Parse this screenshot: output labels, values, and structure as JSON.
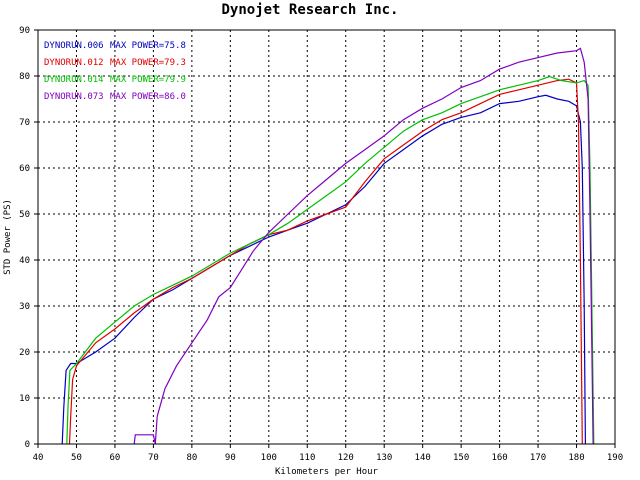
{
  "chart_data": {
    "type": "line",
    "title": "Dynojet  Research  Inc.",
    "xlabel": "Kilometers per Hour",
    "ylabel": "STD Power (PS)",
    "xlim": [
      40,
      190
    ],
    "ylim": [
      0,
      90
    ],
    "xticks": [
      40,
      50,
      60,
      70,
      80,
      90,
      100,
      110,
      120,
      130,
      140,
      150,
      160,
      170,
      180,
      190
    ],
    "yticks": [
      0,
      10,
      20,
      30,
      40,
      50,
      60,
      70,
      80,
      90
    ],
    "grid": true,
    "legend_position": "top-left",
    "series": [
      {
        "name": "DYNORUN.006",
        "label": "MAX POWER=75.8",
        "color": "#0000c0",
        "points": [
          [
            46.3,
            0
          ],
          [
            46.7,
            8
          ],
          [
            47.3,
            16
          ],
          [
            48.5,
            17.5
          ],
          [
            50,
            17.5
          ],
          [
            55,
            20
          ],
          [
            60,
            23
          ],
          [
            65,
            27.5
          ],
          [
            70,
            31.5
          ],
          [
            75,
            33.5
          ],
          [
            80,
            36
          ],
          [
            85,
            38.5
          ],
          [
            90,
            41
          ],
          [
            95,
            43
          ],
          [
            100,
            45
          ],
          [
            105,
            46.5
          ],
          [
            110,
            48
          ],
          [
            115,
            50
          ],
          [
            120,
            52
          ],
          [
            125,
            56
          ],
          [
            130,
            61
          ],
          [
            135,
            64
          ],
          [
            140,
            67
          ],
          [
            145,
            69.5
          ],
          [
            150,
            71
          ],
          [
            155,
            72
          ],
          [
            160,
            74
          ],
          [
            165,
            74.5
          ],
          [
            170,
            75.5
          ],
          [
            172,
            75.8
          ],
          [
            175,
            75
          ],
          [
            178,
            74.5
          ],
          [
            180,
            73.5
          ],
          [
            181,
            70
          ],
          [
            181.5,
            60
          ],
          [
            182,
            30
          ],
          [
            182.3,
            0
          ]
        ]
      },
      {
        "name": "DYNORUN.012",
        "label": "MAX POWER=79.3",
        "color": "#e00000",
        "points": [
          [
            48.2,
            0
          ],
          [
            48.5,
            6
          ],
          [
            49,
            14
          ],
          [
            50,
            17
          ],
          [
            55,
            22
          ],
          [
            60,
            25
          ],
          [
            65,
            28.5
          ],
          [
            70,
            31.5
          ],
          [
            75,
            34
          ],
          [
            80,
            36
          ],
          [
            85,
            38.5
          ],
          [
            90,
            41
          ],
          [
            95,
            43.5
          ],
          [
            100,
            45.5
          ],
          [
            105,
            46.5
          ],
          [
            110,
            48.5
          ],
          [
            115,
            50
          ],
          [
            120,
            51.5
          ],
          [
            125,
            57
          ],
          [
            130,
            62
          ],
          [
            135,
            65
          ],
          [
            140,
            68
          ],
          [
            145,
            70.5
          ],
          [
            150,
            72
          ],
          [
            155,
            74
          ],
          [
            160,
            76
          ],
          [
            165,
            77
          ],
          [
            170,
            78
          ],
          [
            175,
            79
          ],
          [
            178,
            79.3
          ],
          [
            180,
            78.5
          ],
          [
            180.5,
            70
          ],
          [
            181,
            40
          ],
          [
            181.5,
            0
          ]
        ]
      },
      {
        "name": "DYNORUN.014",
        "label": "MAX POWER=79.9",
        "color": "#00c000",
        "points": [
          [
            47.5,
            0
          ],
          [
            47.8,
            8
          ],
          [
            48.3,
            16
          ],
          [
            50,
            17.5
          ],
          [
            55,
            23
          ],
          [
            60,
            26.5
          ],
          [
            65,
            30
          ],
          [
            70,
            32.5
          ],
          [
            75,
            34.5
          ],
          [
            80,
            36.5
          ],
          [
            85,
            39
          ],
          [
            90,
            41.5
          ],
          [
            95,
            43.5
          ],
          [
            100,
            45.5
          ],
          [
            105,
            48
          ],
          [
            110,
            51
          ],
          [
            115,
            54
          ],
          [
            120,
            57
          ],
          [
            125,
            61
          ],
          [
            130,
            64.5
          ],
          [
            135,
            68
          ],
          [
            140,
            70.5
          ],
          [
            145,
            72
          ],
          [
            150,
            74
          ],
          [
            155,
            75.5
          ],
          [
            160,
            77
          ],
          [
            165,
            78
          ],
          [
            170,
            79
          ],
          [
            173,
            79.9
          ],
          [
            176,
            79
          ],
          [
            180,
            78.5
          ],
          [
            182,
            79
          ],
          [
            183,
            78
          ],
          [
            183.5,
            60
          ],
          [
            184,
            30
          ],
          [
            184.5,
            0
          ]
        ]
      },
      {
        "name": "DYNORUN.073",
        "label": "MAX POWER=86.0",
        "color": "#8000c0",
        "points": [
          [
            65,
            0
          ],
          [
            65.3,
            2
          ],
          [
            67,
            2
          ],
          [
            70,
            2
          ],
          [
            70.5,
            0
          ],
          [
            71,
            6
          ],
          [
            73,
            12
          ],
          [
            76,
            17
          ],
          [
            80,
            22
          ],
          [
            84,
            27
          ],
          [
            87,
            32
          ],
          [
            90,
            34
          ],
          [
            93,
            38
          ],
          [
            96,
            42
          ],
          [
            100,
            46
          ],
          [
            105,
            50
          ],
          [
            110,
            54
          ],
          [
            115,
            57.5
          ],
          [
            120,
            61
          ],
          [
            125,
            64
          ],
          [
            130,
            67
          ],
          [
            135,
            70.5
          ],
          [
            140,
            73
          ],
          [
            145,
            75
          ],
          [
            150,
            77.5
          ],
          [
            155,
            79
          ],
          [
            160,
            81.5
          ],
          [
            165,
            83
          ],
          [
            170,
            84
          ],
          [
            175,
            85
          ],
          [
            180,
            85.5
          ],
          [
            181,
            86
          ],
          [
            182,
            83
          ],
          [
            183,
            75
          ],
          [
            183.5,
            50
          ],
          [
            184,
            20
          ],
          [
            184.3,
            0
          ]
        ]
      }
    ]
  }
}
